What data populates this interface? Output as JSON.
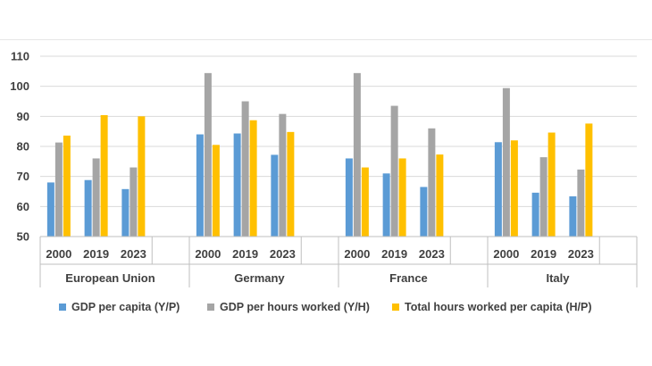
{
  "chart_data": {
    "type": "bar",
    "title": "",
    "xlabel": "",
    "ylabel": "",
    "ylim": [
      50,
      110
    ],
    "yticks": [
      50,
      60,
      70,
      80,
      90,
      100,
      110
    ],
    "grid": true,
    "legend_position": "bottom",
    "groups": [
      {
        "name": "European Union",
        "years": [
          "2000",
          "2019",
          "2023"
        ]
      },
      {
        "name": "Germany",
        "years": [
          "2000",
          "2019",
          "2023"
        ]
      },
      {
        "name": "France",
        "years": [
          "2000",
          "2019",
          "2023"
        ]
      },
      {
        "name": "Italy",
        "years": [
          "2000",
          "2019",
          "2023"
        ]
      }
    ],
    "series": [
      {
        "name": "GDP per capita (Y/P)",
        "color": "#5B9BD5",
        "values": [
          [
            68,
            68.8,
            65.8
          ],
          [
            84,
            84.3,
            77.2
          ],
          [
            76,
            71,
            66.5
          ],
          [
            81.4,
            64.6,
            63.4
          ]
        ]
      },
      {
        "name": "GDP per hours worked (Y/H)",
        "color": "#A5A5A5",
        "values": [
          [
            81.3,
            76,
            73
          ],
          [
            104.4,
            95,
            90.8
          ],
          [
            104.4,
            93.5,
            86
          ],
          [
            99.4,
            76.4,
            72.3
          ]
        ]
      },
      {
        "name": "Total hours worked per capita (H/P)",
        "color": "#FFC000",
        "values": [
          [
            83.6,
            90.4,
            90
          ],
          [
            80.5,
            88.7,
            84.8
          ],
          [
            73,
            76,
            77.3
          ],
          [
            82,
            84.6,
            87.6
          ]
        ]
      }
    ]
  }
}
